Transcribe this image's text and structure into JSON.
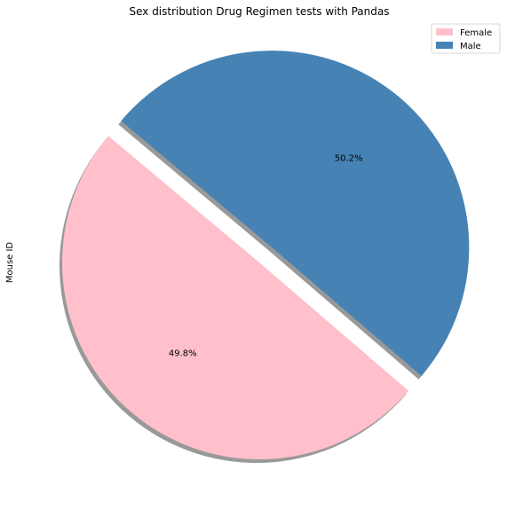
{
  "chart_data": {
    "type": "pie",
    "title": "Sex distribution Drug Regimen tests with Pandas",
    "ylabel": "Mouse ID",
    "slices": [
      {
        "label": "Female",
        "value": 49.8,
        "pct_label": "49.8%",
        "color": "#FFC0CB",
        "explode": false
      },
      {
        "label": "Male",
        "value": 50.2,
        "pct_label": "50.2%",
        "color": "#4682B4",
        "explode": true
      }
    ],
    "start_angle_deg": 140,
    "shadow": true,
    "legend": {
      "placement": "top-right",
      "entries": [
        "Female",
        "Male"
      ]
    }
  }
}
